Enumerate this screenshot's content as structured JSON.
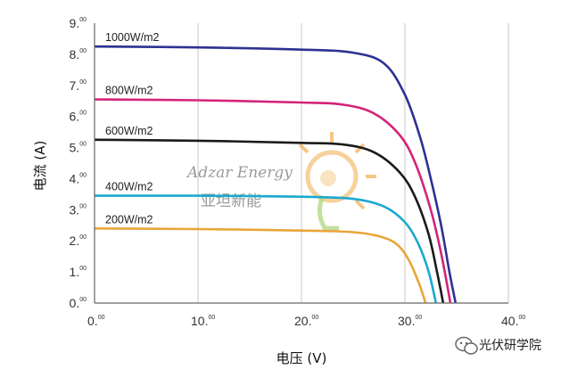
{
  "chart_data": {
    "type": "line",
    "xlabel": "电压 (V)",
    "ylabel": "电流 (A)",
    "xlim": [
      0,
      40
    ],
    "ylim": [
      0,
      9
    ],
    "x_ticks": [
      {
        "main": "0.",
        "sup": "00"
      },
      {
        "main": "10.",
        "sup": "00"
      },
      {
        "main": "20.",
        "sup": "00"
      },
      {
        "main": "30.",
        "sup": "00"
      },
      {
        "main": "40.",
        "sup": "00"
      }
    ],
    "y_ticks": [
      {
        "main": "0.",
        "sup": "00"
      },
      {
        "main": "1.",
        "sup": "00"
      },
      {
        "main": "2.",
        "sup": "00"
      },
      {
        "main": "3.",
        "sup": "00"
      },
      {
        "main": "4.",
        "sup": "00"
      },
      {
        "main": "5.",
        "sup": "00"
      },
      {
        "main": "6.",
        "sup": "00"
      },
      {
        "main": "7.",
        "sup": "00"
      },
      {
        "main": "8.",
        "sup": "00"
      },
      {
        "main": "9.",
        "sup": "00"
      }
    ],
    "grid": "vertical",
    "series": [
      {
        "name": "1000W/m2",
        "color": "#2e3192",
        "isc": 8.25,
        "voc": 34.9,
        "points": [
          [
            0,
            8.25
          ],
          [
            10,
            8.22
          ],
          [
            20,
            8.15
          ],
          [
            25,
            8.05
          ],
          [
            28,
            7.7
          ],
          [
            30,
            6.7
          ],
          [
            31.5,
            5.3
          ],
          [
            32.5,
            4.0
          ],
          [
            33.5,
            2.5
          ],
          [
            34.3,
            1.0
          ],
          [
            34.9,
            0
          ]
        ]
      },
      {
        "name": "800W/m2",
        "color": "#d4237a",
        "isc": 6.55,
        "voc": 34.4,
        "points": [
          [
            0,
            6.55
          ],
          [
            10,
            6.52
          ],
          [
            20,
            6.45
          ],
          [
            24,
            6.38
          ],
          [
            27,
            6.1
          ],
          [
            29.5,
            5.4
          ],
          [
            31,
            4.5
          ],
          [
            32.5,
            3.0
          ],
          [
            33.5,
            1.6
          ],
          [
            34.4,
            0
          ]
        ]
      },
      {
        "name": "600W/m2",
        "color": "#1a1a1a",
        "isc": 5.25,
        "voc": 33.7,
        "points": [
          [
            0,
            5.25
          ],
          [
            10,
            5.22
          ],
          [
            20,
            5.15
          ],
          [
            24,
            5.1
          ],
          [
            27,
            4.85
          ],
          [
            29.5,
            4.2
          ],
          [
            31,
            3.4
          ],
          [
            32.3,
            2.2
          ],
          [
            33.1,
            1.0
          ],
          [
            33.7,
            0
          ]
        ]
      },
      {
        "name": "400W/m2",
        "color": "#1ba9cf",
        "isc": 3.45,
        "voc": 33.0,
        "points": [
          [
            0,
            3.45
          ],
          [
            10,
            3.45
          ],
          [
            20,
            3.42
          ],
          [
            25,
            3.35
          ],
          [
            28,
            3.1
          ],
          [
            30,
            2.6
          ],
          [
            31.3,
            1.9
          ],
          [
            32.3,
            1.0
          ],
          [
            33.0,
            0
          ]
        ]
      },
      {
        "name": "200W/m2",
        "color": "#e9a63a",
        "isc": 2.4,
        "voc": 32.0,
        "points": [
          [
            0,
            2.4
          ],
          [
            10,
            2.38
          ],
          [
            20,
            2.33
          ],
          [
            25,
            2.28
          ],
          [
            28,
            2.1
          ],
          [
            29.5,
            1.8
          ],
          [
            30.5,
            1.3
          ],
          [
            31.4,
            0.6
          ],
          [
            32.0,
            0
          ]
        ]
      }
    ]
  },
  "watermark": {
    "brand_en": "Adzar Energy",
    "brand_cn": "亚坦新能",
    "sun_color": "#f4a460",
    "bulb_color": "#9ccc65"
  },
  "footer": {
    "account_name": "光伏研学院",
    "icon": "wechat-icon"
  }
}
